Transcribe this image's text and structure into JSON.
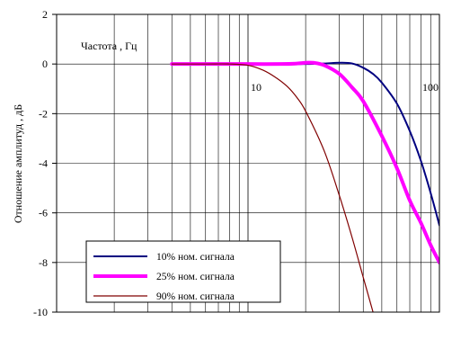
{
  "chart_data": {
    "type": "line",
    "xscale": "log",
    "xlim": [
      1,
      100
    ],
    "ylim": [
      -10,
      2
    ],
    "grid": true,
    "xlabel": "Частота , Гц",
    "ylabel": "Отношение амплитуд , дБ",
    "x_tick_labels": [
      "10",
      "100"
    ],
    "y_tick_labels": [
      "2",
      "0",
      "-2",
      "-4",
      "-6",
      "-8",
      "-10"
    ],
    "legend_position": "bottom-left",
    "series": [
      {
        "name": "10% ном. сигнала",
        "color": "#000080",
        "width": 2,
        "x": [
          4,
          6,
          8,
          10,
          15,
          20,
          25,
          30,
          35,
          40,
          45,
          50,
          60,
          70,
          80,
          90,
          100
        ],
        "y": [
          0,
          0,
          0,
          0,
          0,
          0,
          0.02,
          0.05,
          0.02,
          -0.15,
          -0.4,
          -0.75,
          -1.6,
          -2.7,
          -3.9,
          -5.2,
          -6.5
        ]
      },
      {
        "name": "25% ном. сигнала",
        "color": "#ff00ff",
        "width": 4,
        "x": [
          4,
          6,
          8,
          10,
          15,
          18,
          20,
          22,
          25,
          30,
          35,
          40,
          50,
          60,
          70,
          80,
          90,
          100
        ],
        "y": [
          0,
          0,
          0,
          0,
          0,
          0.02,
          0.05,
          0.05,
          -0.05,
          -0.4,
          -0.95,
          -1.5,
          -2.9,
          -4.2,
          -5.5,
          -6.4,
          -7.3,
          -8.0
        ]
      },
      {
        "name": "90% ном. сигнала",
        "color": "#800000",
        "width": 1.2,
        "x": [
          4,
          6,
          8,
          10,
          12,
          14,
          16,
          18,
          20,
          25,
          30,
          35,
          40,
          45
        ],
        "y": [
          0,
          0,
          0,
          -0.05,
          -0.25,
          -0.55,
          -0.9,
          -1.35,
          -1.9,
          -3.5,
          -5.3,
          -7.0,
          -8.6,
          -10
        ]
      }
    ]
  }
}
